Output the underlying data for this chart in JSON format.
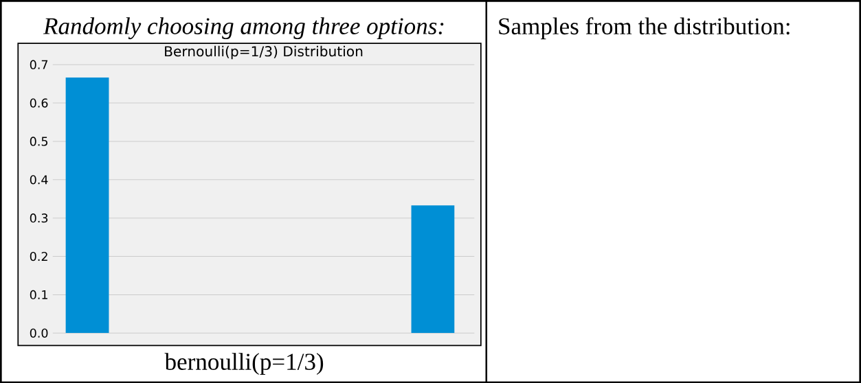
{
  "chart_data": {
    "type": "bar",
    "title": "Bernoulli(p=1/3) Distribution",
    "xlabel": "bernoulli(p=1/3)",
    "annotations": [
      "*Randomly choosing among three options:*",
      "Samples from the distribution:"
    ],
    "categories": [
      null,
      null
    ],
    "values": [
      0.667,
      0.333
    ],
    "color": "#008fd5",
    "ylim": [
      0,
      0.7
    ],
    "yticks": [
      {
        "value": 0,
        "label": "0.0"
      },
      0.1,
      0.2,
      0.3,
      0.4,
      0.5,
      0.6,
      0.7
    ],
    "grid": "y"
  }
}
